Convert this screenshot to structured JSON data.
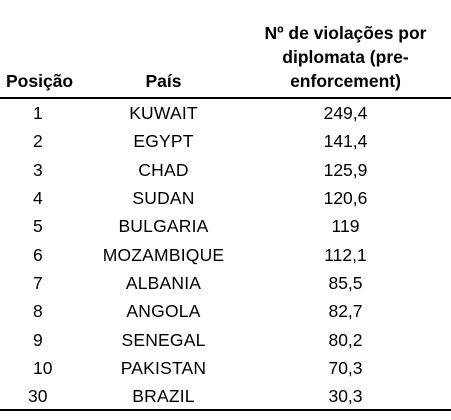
{
  "table": {
    "headers": {
      "position": "Posição",
      "country": "País",
      "value_line1": "Nº de violações por",
      "value_line2": "diplomata (pre-",
      "value_line3": "enforcement)"
    },
    "rows": [
      {
        "position": "1",
        "country": "KUWAIT",
        "value": "249,4"
      },
      {
        "position": "2",
        "country": "EGYPT",
        "value": "141,4"
      },
      {
        "position": "3",
        "country": "CHAD",
        "value": "125,9"
      },
      {
        "position": "4",
        "country": "SUDAN",
        "value": "120,6"
      },
      {
        "position": "5",
        "country": "BULGARIA",
        "value": "119"
      },
      {
        "position": "6",
        "country": "MOZAMBIQUE",
        "value": "112,1"
      },
      {
        "position": "7",
        "country": "ALBANIA",
        "value": "85,5"
      },
      {
        "position": "8",
        "country": "ANGOLA",
        "value": "82,7"
      },
      {
        "position": "9",
        "country": "SENEGAL",
        "value": "80,2"
      },
      {
        "position": "10",
        "country": "PAKISTAN",
        "value": "70,3"
      },
      {
        "position": "30",
        "country": "BRAZIL",
        "value": "30,3"
      }
    ]
  }
}
